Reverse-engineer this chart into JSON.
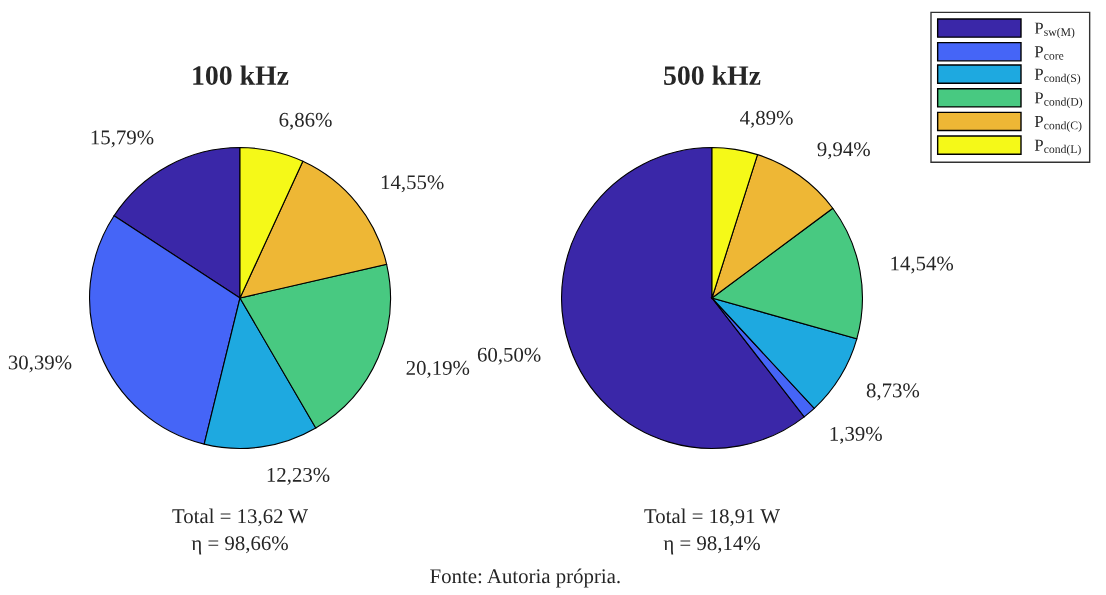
{
  "chart_data": [
    {
      "type": "pie",
      "title": "100 kHz",
      "categories": [
        "P$_{sw(M)}$",
        "P$_{core}$",
        "P$_{cond(S)}$",
        "P$_{cond(D)}$",
        "P$_{cond(C)}$",
        "P$_{cond(L)}$"
      ],
      "values": [
        15.79,
        30.39,
        12.23,
        20.19,
        14.55,
        6.86
      ],
      "value_labels": [
        "15,79%",
        "30,39%",
        "12,23%",
        "20,19%",
        "14,55%",
        "6,86%"
      ],
      "colors": [
        "#3a27a8",
        "#4565f7",
        "#1ea9e0",
        "#48c981",
        "#eeb735",
        "#f5f918"
      ],
      "legend": "top right",
      "annotations": [
        "Total = 13,62 W",
        "η = 98,66%"
      ]
    },
    {
      "type": "pie",
      "title": "500 kHz",
      "categories": [
        null,
        null,
        null,
        null,
        null,
        null
      ],
      "values": [
        60.5,
        1.39,
        8.73,
        14.54,
        9.94,
        4.89
      ],
      "value_labels": [
        "60,50%",
        "1,39%",
        "8,73%",
        "14,54%",
        "9,94%",
        "4,89%"
      ],
      "colors": [
        "#3a27a8",
        "#4565f7",
        "#1ea9e0",
        "#48c981",
        "#eeb735",
        "#f5f918"
      ],
      "annotations": [
        "Total = 18,91 W",
        "η = 98,14%",
        "Fonte: Autoria própria."
      ]
    }
  ]
}
